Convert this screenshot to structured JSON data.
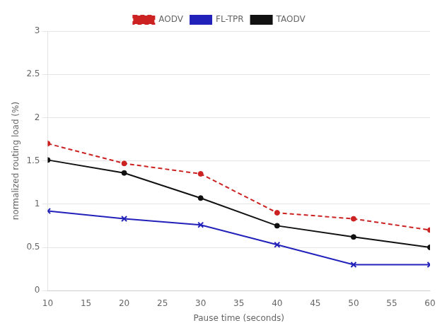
{
  "chart_data": {
    "type": "line",
    "xlabel": "Pause time (seconds)",
    "ylabel": "normalized routing load (%)",
    "x": [
      10,
      20,
      30,
      40,
      50,
      60
    ],
    "series": [
      {
        "name": "AODV",
        "color": "#cc2222",
        "marker": "circle",
        "line_style": "dashed",
        "values": [
          1.7,
          1.47,
          1.35,
          0.9,
          0.83,
          0.7
        ]
      },
      {
        "name": "FL-TPR",
        "color": "#2222bb",
        "marker": "x",
        "line_style": "solid",
        "values": [
          0.92,
          0.83,
          0.76,
          0.53,
          0.3,
          0.3
        ]
      },
      {
        "name": "TAODV",
        "color": "#111111",
        "marker": "circle",
        "line_style": "solid",
        "values": [
          1.51,
          1.36,
          1.07,
          0.75,
          0.62,
          0.5
        ]
      }
    ],
    "xlim": [
      10,
      60
    ],
    "ylim": [
      0,
      3
    ],
    "xticks": [
      10,
      15,
      20,
      25,
      30,
      35,
      40,
      45,
      50,
      55,
      60
    ],
    "yticks": [
      0,
      0.5,
      1.0,
      1.5,
      2.0,
      2.5,
      3.0
    ],
    "grid": "y",
    "legend": "top"
  }
}
